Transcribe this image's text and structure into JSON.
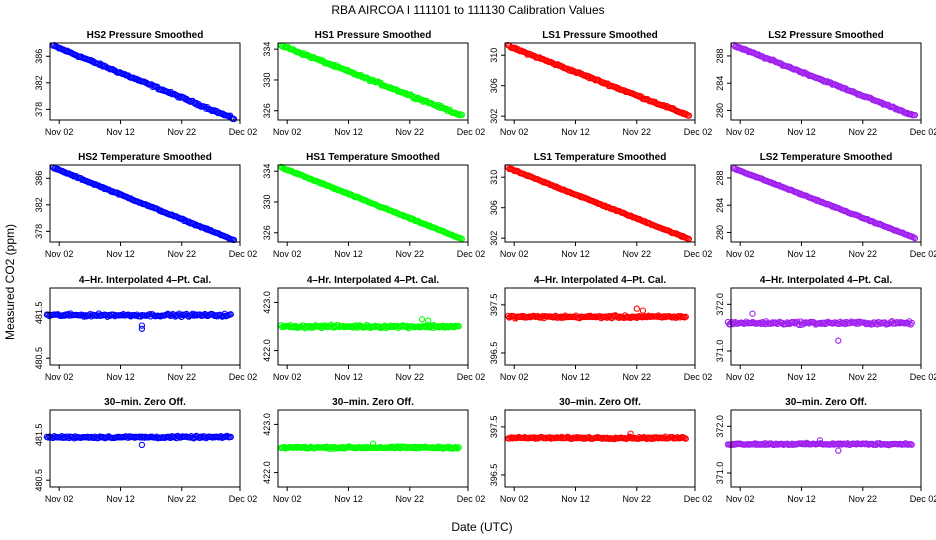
{
  "figure": {
    "suptitle": "RBA   AIRCOA I   111101 to 111130   Calibration Values",
    "xlabel": "Date (UTC)",
    "ylabel": "Measured CO2 (ppm)",
    "x_ticks": [
      "Nov 02",
      "Nov 12",
      "Nov 22",
      "Dec 02"
    ],
    "x_tick_days": [
      2,
      12,
      22,
      32
    ],
    "x_range_days": [
      0.5,
      31.5
    ]
  },
  "chart_data": [
    {
      "type": "scatter",
      "title": "HS2 Pressure Smoothed",
      "color": "#0000ff",
      "ylim": [
        376.4,
        388.0
      ],
      "yticks": [
        378,
        382,
        386
      ],
      "y_start": 387.6,
      "y_end": 376.6,
      "noise": 0.25,
      "x": [
        1,
        30.5
      ]
    },
    {
      "type": "scatter",
      "title": "HS1 Pressure Smoothed",
      "color": "#00ff00",
      "ylim": [
        324.8,
        334.8
      ],
      "yticks": [
        326,
        330,
        334
      ],
      "y_start": 334.5,
      "y_end": 325.4,
      "noise": 0.22,
      "x": [
        1,
        30.5
      ]
    },
    {
      "type": "scatter",
      "title": "LS1 Pressure Smoothed",
      "color": "#ff0000",
      "ylim": [
        301.5,
        311.6
      ],
      "yticks": [
        302,
        306,
        310
      ],
      "y_start": 311.2,
      "y_end": 302.1,
      "noise": 0.2,
      "x": [
        1,
        30.5
      ]
    },
    {
      "type": "scatter",
      "title": "LS2 Pressure Smoothed",
      "color": "#a020f0",
      "ylim": [
        278.6,
        289.9
      ],
      "yticks": [
        280,
        284,
        288
      ],
      "y_start": 289.5,
      "y_end": 279.2,
      "noise": 0.2,
      "x": [
        1,
        30.5
      ]
    },
    {
      "type": "scatter",
      "title": "HS2 Temperature Smoothed",
      "color": "#0000ff",
      "ylim": [
        376.4,
        388.0
      ],
      "yticks": [
        378,
        382,
        386
      ],
      "y_start": 387.6,
      "y_end": 376.7,
      "noise": 0.15,
      "x": [
        1,
        30.5
      ]
    },
    {
      "type": "scatter",
      "title": "HS1 Temperature Smoothed",
      "color": "#00ff00",
      "ylim": [
        324.8,
        334.8
      ],
      "yticks": [
        326,
        330,
        334
      ],
      "y_start": 334.5,
      "y_end": 325.2,
      "noise": 0.12,
      "x": [
        1,
        30.5
      ]
    },
    {
      "type": "scatter",
      "title": "LS1 Temperature Smoothed",
      "color": "#ff0000",
      "ylim": [
        301.5,
        311.6
      ],
      "yticks": [
        302,
        306,
        310
      ],
      "y_start": 311.2,
      "y_end": 301.9,
      "noise": 0.12,
      "x": [
        1,
        30.5
      ]
    },
    {
      "type": "scatter",
      "title": "LS2 Temperature Smoothed",
      "color": "#a020f0",
      "ylim": [
        278.6,
        289.9
      ],
      "yticks": [
        280,
        284,
        288
      ],
      "y_start": 289.4,
      "y_end": 279.2,
      "noise": 0.12,
      "x": [
        1,
        30.5
      ]
    },
    {
      "type": "scatter",
      "title": "4–Hr. Interpolated 4–Pt. Cal.",
      "color": "#0000ff",
      "ylim": [
        480.35,
        482.05
      ],
      "yticks": [
        480.5,
        481.5
      ],
      "yticklabels": [
        "480.5",
        "481.5"
      ],
      "y_start": 481.45,
      "y_end": 481.45,
      "noise": 0.045,
      "x": [
        0,
        30
      ],
      "outliers": [
        [
          15.5,
          481.15
        ],
        [
          15.5,
          481.22
        ]
      ]
    },
    {
      "type": "scatter",
      "title": "4–Hr. Interpolated 4–Pt. Cal.",
      "color": "#00ff00",
      "ylim": [
        421.7,
        423.3
      ],
      "yticks": [
        422.0,
        423.0
      ],
      "yticklabels": [
        "422.0",
        "423.0"
      ],
      "y_start": 422.5,
      "y_end": 422.5,
      "noise": 0.045,
      "x": [
        1,
        30
      ],
      "outliers": [
        [
          24,
          422.65
        ],
        [
          25,
          422.62
        ]
      ]
    },
    {
      "type": "scatter",
      "title": "4–Hr. Interpolated 4–Pt. Cal.",
      "color": "#ff0000",
      "ylim": [
        396.25,
        397.85
      ],
      "yticks": [
        396.5,
        397.5
      ],
      "yticklabels": [
        "396.5",
        "397.5"
      ],
      "y_start": 397.25,
      "y_end": 397.25,
      "noise": 0.04,
      "x": [
        1,
        30
      ],
      "outliers": [
        [
          22,
          397.42
        ],
        [
          23,
          397.38
        ]
      ]
    },
    {
      "type": "scatter",
      "title": "4–Hr. Interpolated 4–Pt. Cal.",
      "color": "#a020f0",
      "ylim": [
        370.7,
        372.35
      ],
      "yticks": [
        371.0,
        372.0
      ],
      "yticklabels": [
        "371.0",
        "372.0"
      ],
      "y_start": 371.6,
      "y_end": 371.6,
      "noise": 0.05,
      "x": [
        0,
        30
      ],
      "outliers": [
        [
          4,
          371.8
        ],
        [
          18,
          371.22
        ]
      ]
    },
    {
      "type": "scatter",
      "title": "30–min. Zero Off.",
      "color": "#0000ff",
      "ylim": [
        480.35,
        482.05
      ],
      "yticks": [
        480.5,
        481.5
      ],
      "yticklabels": [
        "480.5",
        "481.5"
      ],
      "y_start": 481.45,
      "y_end": 481.45,
      "noise": 0.035,
      "x": [
        0,
        30
      ],
      "outliers": [
        [
          15.5,
          481.28
        ]
      ]
    },
    {
      "type": "scatter",
      "title": "30–min. Zero Off.",
      "color": "#00ff00",
      "ylim": [
        421.7,
        423.3
      ],
      "yticks": [
        422.0,
        423.0
      ],
      "yticklabels": [
        "422.0",
        "423.0"
      ],
      "y_start": 422.52,
      "y_end": 422.52,
      "noise": 0.03,
      "x": [
        1,
        30
      ],
      "outliers": [
        [
          16,
          422.6
        ]
      ]
    },
    {
      "type": "scatter",
      "title": "30–min. Zero Off.",
      "color": "#ff0000",
      "ylim": [
        396.25,
        397.85
      ],
      "yticks": [
        396.5,
        397.5
      ],
      "yticklabels": [
        "396.5",
        "397.5"
      ],
      "y_start": 397.27,
      "y_end": 397.27,
      "noise": 0.03,
      "x": [
        1,
        30
      ],
      "outliers": [
        [
          21,
          397.36
        ]
      ]
    },
    {
      "type": "scatter",
      "title": "30–min. Zero Off.",
      "color": "#a020f0",
      "ylim": [
        370.7,
        372.35
      ],
      "yticks": [
        371.0,
        372.0
      ],
      "yticklabels": [
        "371.0",
        "372.0"
      ],
      "y_start": 371.62,
      "y_end": 371.62,
      "noise": 0.03,
      "x": [
        0,
        30
      ],
      "outliers": [
        [
          18,
          371.48
        ],
        [
          15,
          371.7
        ]
      ]
    }
  ]
}
